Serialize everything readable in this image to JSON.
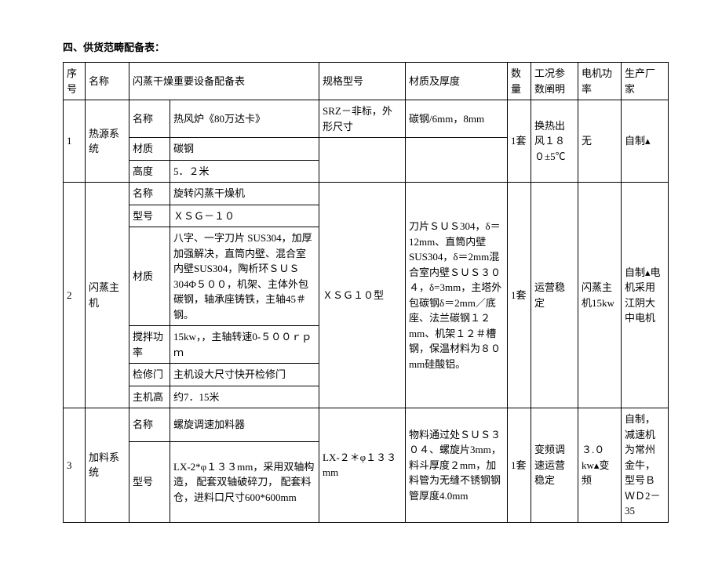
{
  "title": "四、供货范畴配备表：",
  "headers": {
    "seq": "序号",
    "name": "名称",
    "main": "闪蒸干燥重要设备配备表",
    "spec": "规格型号",
    "material": "材质及厚度",
    "qty": "数量",
    "cond": "工况参数阐明",
    "power": "电机功率",
    "mfr": "生产厂家"
  },
  "rows": [
    {
      "seq": "1",
      "name": "热源系统",
      "kv": [
        {
          "k": "名称",
          "v": "热风炉《80万达卡》"
        },
        {
          "k": "材质",
          "v": "碳钢"
        },
        {
          "k": "高度",
          "v": "5．２米"
        }
      ],
      "spec": "SRZ－非标，外形尺寸",
      "material": "碳钢/6mm，8mm",
      "qty": "1套",
      "cond": "换热出风１８０±5℃",
      "power": "无",
      "mfr": "自制▴"
    },
    {
      "seq": "2",
      "name": "闪蒸主机",
      "kv": [
        {
          "k": "名称",
          "v": "旋转闪蒸干燥机"
        },
        {
          "k": "型号",
          "v": "ＸＳＧ－１０"
        },
        {
          "k": "材质",
          "v": "八字、一字刀片 SUS304，加厚加强解决，直筒内壁、混合室内壁SUS304，陶析环ＳＵＳ304Φ５００，机架、主体外包碳钢，轴承座铸铁，主轴45＃钢。"
        },
        {
          "k": "搅拌功率",
          "v": "15kw，，主轴转速0-５００ｒｐｍ"
        },
        {
          "k": "检修门",
          "v": "主机设大尺寸快开检修门"
        },
        {
          "k": "主机高",
          "v": "约7．15米"
        }
      ],
      "spec": "ＸＳＧ１０型",
      "material": "刀片ＳＵＳ304，δ＝12mm、直筒内壁SUS304，δ＝2mm混合室内壁ＳＵＳ３０４，δ=3mm，主塔外包碳钢δ＝2mm／底座、法兰碳钢１２mm、机架１２＃槽钢，保温材料为８０mm硅酸铝。",
      "qty": "1套",
      "cond": "运营稳定",
      "power": "闪蒸主机15kw",
      "mfr": "自制▴电机采用江阴大中电机"
    },
    {
      "seq": "3",
      "name": "加料系统",
      "kv": [
        {
          "k": "名称",
          "v": "螺旋调速加料器"
        },
        {
          "k": "型号",
          "v": "LX-2*φ１３３mm，采用双轴构造，\n配套双轴破碎刀，\n配套料仓，进料口尺寸600*600mm"
        }
      ],
      "spec": "LX-２＊φ１３３mm",
      "material": "物料通过处ＳＵＳ３０４、螺旋片3mm，料斗厚度２mm，加料管为无缝不锈钢钢管厚度4.0mm",
      "qty": "1套",
      "cond": "变频调速运营稳定",
      "power": "３.０kw▴变频",
      "mfr": "自制，减速机为常州金牛，型号ＢＷＤ2－35"
    }
  ]
}
